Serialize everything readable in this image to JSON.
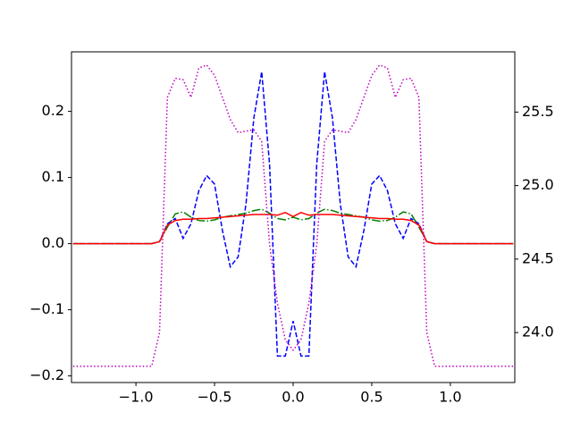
{
  "chart_data": {
    "type": "line",
    "x": [
      -1.4,
      -1.35,
      -1.3,
      -1.25,
      -1.2,
      -1.15,
      -1.1,
      -1.05,
      -1.0,
      -0.95,
      -0.9,
      -0.85,
      -0.8,
      -0.75,
      -0.7,
      -0.65,
      -0.6,
      -0.55,
      -0.5,
      -0.45,
      -0.4,
      -0.35,
      -0.3,
      -0.25,
      -0.2,
      -0.15,
      -0.1,
      -0.05,
      0,
      0.05,
      0.1,
      0.15,
      0.2,
      0.25,
      0.3,
      0.35,
      0.4,
      0.45,
      0.5,
      0.55,
      0.6,
      0.65,
      0.7,
      0.75,
      0.8,
      0.85,
      0.9,
      0.95,
      1.0,
      1.05,
      1.1,
      1.15,
      1.2,
      1.25,
      1.3,
      1.35,
      1.4
    ],
    "series": [
      {
        "color": "#0000ff",
        "linestyle": "dashed",
        "values": [
          0,
          0,
          0,
          0,
          0,
          0,
          0,
          0,
          0,
          0,
          0,
          0.003,
          0.03,
          0.038,
          0.008,
          0.03,
          0.08,
          0.103,
          0.09,
          0.02,
          -0.035,
          -0.02,
          0.06,
          0.19,
          0.26,
          0.12,
          -0.17,
          -0.17,
          -0.117,
          -0.17,
          -0.17,
          0.12,
          0.26,
          0.19,
          0.06,
          -0.02,
          -0.035,
          0.02,
          0.09,
          0.103,
          0.08,
          0.03,
          0.008,
          0.038,
          0.03,
          0.003,
          0,
          0,
          0,
          0,
          0,
          0,
          0,
          0,
          0,
          0,
          0
        ]
      },
      {
        "color": "#008000",
        "linestyle": "dashdot",
        "values": [
          0,
          0,
          0,
          0,
          0,
          0,
          0,
          0,
          0,
          0,
          0,
          0.003,
          0.025,
          0.045,
          0.048,
          0.04,
          0.035,
          0.034,
          0.036,
          0.04,
          0.042,
          0.044,
          0.046,
          0.05,
          0.052,
          0.046,
          0.038,
          0.036,
          0.04,
          0.036,
          0.038,
          0.046,
          0.052,
          0.05,
          0.046,
          0.044,
          0.042,
          0.04,
          0.036,
          0.034,
          0.035,
          0.04,
          0.048,
          0.045,
          0.025,
          0.003,
          0,
          0,
          0,
          0,
          0,
          0,
          0,
          0,
          0,
          0,
          0
        ]
      },
      {
        "color": "#ff0000",
        "linestyle": "solid",
        "values": [
          0,
          0,
          0,
          0,
          0,
          0,
          0,
          0,
          0,
          0,
          0,
          0.003,
          0.028,
          0.035,
          0.037,
          0.037,
          0.038,
          0.038,
          0.039,
          0.04,
          0.041,
          0.042,
          0.043,
          0.044,
          0.044,
          0.044,
          0.043,
          0.047,
          0.041,
          0.047,
          0.043,
          0.044,
          0.044,
          0.044,
          0.043,
          0.042,
          0.041,
          0.04,
          0.039,
          0.038,
          0.038,
          0.037,
          0.037,
          0.035,
          0.028,
          0.003,
          0,
          0,
          0,
          0,
          0,
          0,
          0,
          0,
          0,
          0,
          0
        ]
      },
      {
        "color": "#bf00bf",
        "linestyle": "dotted",
        "axis": "y2",
        "values": [
          23.77,
          23.77,
          23.77,
          23.77,
          23.77,
          23.77,
          23.77,
          23.77,
          23.77,
          23.77,
          23.77,
          24.0,
          25.6,
          25.73,
          25.72,
          25.6,
          25.8,
          25.82,
          25.75,
          25.6,
          25.45,
          25.36,
          25.37,
          25.38,
          25.3,
          24.6,
          24.2,
          23.95,
          23.88,
          23.95,
          24.2,
          24.6,
          25.3,
          25.38,
          25.37,
          25.36,
          25.45,
          25.6,
          25.75,
          25.82,
          25.8,
          25.6,
          25.72,
          25.73,
          25.6,
          24.0,
          23.77,
          23.77,
          23.77,
          23.77,
          23.77,
          23.77,
          23.77,
          23.77,
          23.77,
          23.77,
          23.77
        ]
      }
    ],
    "xlim": [
      -1.41,
      1.41
    ],
    "xticks": [
      {
        "value": -1.0,
        "label": "−1.0"
      },
      {
        "value": -0.5,
        "label": "−0.5"
      },
      {
        "value": 0,
        "label": "0.0"
      },
      0.5,
      {
        "value": 1.0,
        "label": "1.0"
      }
    ],
    "ylim": [
      -0.21,
      0.29
    ],
    "yticks": [
      {
        "value": -0.2,
        "label": "−0.2"
      },
      {
        "value": -0.1,
        "label": "−0.1"
      },
      {
        "value": 0,
        "label": "0.0"
      },
      0.1,
      0.2
    ],
    "y2lim": [
      23.66,
      25.91
    ],
    "y2ticks": [
      {
        "value": 24.0,
        "label": "24.0"
      },
      24.5,
      {
        "value": 25.0,
        "label": "25.0"
      },
      25.5
    ],
    "grid": false
  }
}
